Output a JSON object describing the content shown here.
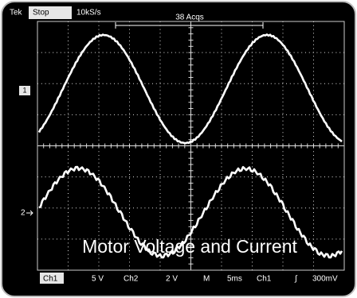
{
  "header": {
    "brand": "Tek",
    "state": "Stop",
    "sample_rate": "10kS/s",
    "acquisitions": "38 Acqs"
  },
  "markers": {
    "ch1": "1",
    "ch2": "2"
  },
  "footer": {
    "ch1_label": "Ch1",
    "ch1_scale": "5 V",
    "ch2_label": "Ch2",
    "ch2_scale": "2 V",
    "mode": "M",
    "timebase": "5ms",
    "trigger_source": "Ch1",
    "trigger_slope": "∫",
    "trigger_level": "300mV"
  },
  "caption": "Motor Voltage and Current"
}
